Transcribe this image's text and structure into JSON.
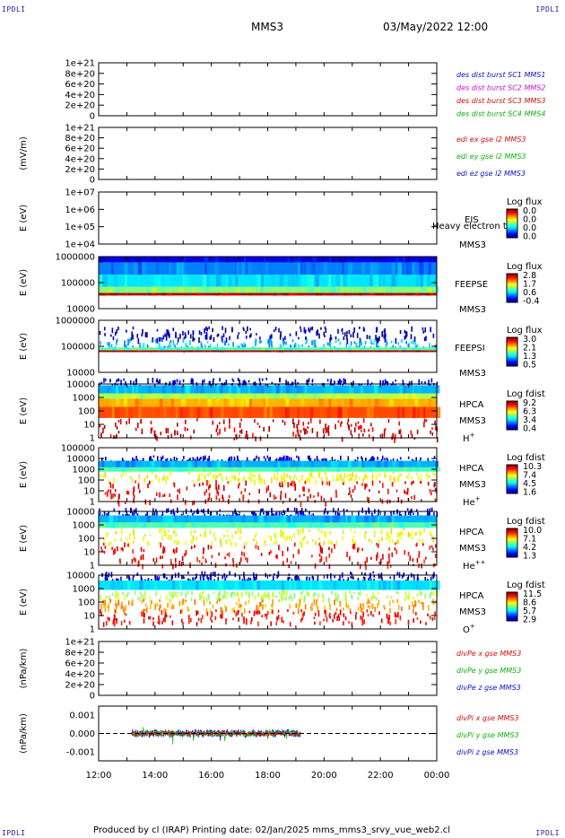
{
  "header": {
    "corner_label": "IPDLI",
    "spacecraft": "MMS3",
    "date_time": "03/May/2022 12:00"
  },
  "footer": {
    "text": "Produced by cl (IRAP)   Printing date: 02/Jan/2025   mms_mms3_srvy_vue_web2.cl"
  },
  "time_axis": {
    "ticks": [
      "12:00",
      "14:00",
      "16:00",
      "18:00",
      "20:00",
      "22:00",
      "00:00"
    ]
  },
  "chart_data": [
    {
      "id": "des-dist",
      "type": "line",
      "ylabel": "",
      "ylim": [
        0,
        1e+21
      ],
      "yticks": [
        "1e+21",
        "8e+20",
        "6e+20",
        "4e+20",
        "2e+20",
        "0"
      ],
      "zero_line": "dashed",
      "legend": [
        {
          "text": "des dist burst SC1 MMS1",
          "color": "#1010c8"
        },
        {
          "text": "des dist burst SC2 MMS2",
          "color": "#d010d0"
        },
        {
          "text": "des dist burst SC3 MMS3",
          "color": "#d01010"
        },
        {
          "text": "des dist burst SC4 MMS4",
          "color": "#10b010"
        }
      ],
      "series": []
    },
    {
      "id": "edi-e",
      "type": "line",
      "ylabel": "(mV/m)",
      "ylim": [
        0,
        1e+21
      ],
      "yticks": [
        "1e+21",
        "8e+20",
        "6e+20",
        "4e+20",
        "2e+20",
        "0"
      ],
      "zero_line": "dashed",
      "legend": [
        {
          "text": "edi ex gse l2 MMS3",
          "color": "#d01010"
        },
        {
          "text": "edi ey gse l2 MMS3",
          "color": "#10b010"
        },
        {
          "text": "edi ez gse l2 MMS3",
          "color": "#1010c8"
        }
      ],
      "series": []
    },
    {
      "id": "eis",
      "type": "heatmap",
      "ylabel": "E (eV)",
      "scale": "log",
      "yticks": [
        "1e+07",
        "1e+06",
        "1e+05",
        "1e+04"
      ],
      "instrument": [
        "EIS",
        "Heavy electron to",
        "MMS3"
      ],
      "colorbar_title": "Log flux",
      "colorbar_ticks": [
        "0.0",
        "0.0",
        "0.0",
        "0.0"
      ],
      "bands": []
    },
    {
      "id": "feepse",
      "type": "heatmap",
      "ylabel": "E (eV)",
      "scale": "log",
      "yticks": [
        "1000000",
        "100000",
        "10000"
      ],
      "instrument": [
        "FEEPSE",
        "MMS3"
      ],
      "colorbar_title": "Log flux",
      "colorbar_ticks": [
        "2.8",
        "1.7",
        "0.6",
        "-0.4"
      ],
      "data_range": {
        "start": "12:00",
        "end": "00:00"
      },
      "bands": [
        {
          "e_range": [
            600000,
            1000000
          ],
          "level": 0.1
        },
        {
          "e_range": [
            200000,
            600000
          ],
          "level": 0.25
        },
        {
          "e_range": [
            70000,
            200000
          ],
          "level": 0.35
        },
        {
          "e_range": [
            40000,
            70000
          ],
          "level": 0.5
        },
        {
          "e_range": [
            32000,
            40000
          ],
          "level": 0.95
        }
      ]
    },
    {
      "id": "feepsi",
      "type": "heatmap",
      "ylabel": "E (eV)",
      "scale": "log",
      "yticks": [
        "1000000",
        "100000",
        "10000"
      ],
      "instrument": [
        "FEEPSI",
        "MMS3"
      ],
      "colorbar_title": "Log flux",
      "colorbar_ticks": [
        "3.0",
        "2.1",
        "1.3",
        "0.5"
      ],
      "data_range": {
        "start": "12:00",
        "end": "00:00"
      },
      "bands": [
        {
          "e_range": [
            200000,
            600000
          ],
          "level": 0.05,
          "sparse": true
        },
        {
          "e_range": [
            90000,
            200000
          ],
          "level": 0.3,
          "sparse": true
        },
        {
          "e_range": [
            70000,
            90000
          ],
          "level": 0.45
        },
        {
          "e_range": [
            60000,
            70000
          ],
          "level": 0.95
        }
      ]
    },
    {
      "id": "hpca-h",
      "type": "heatmap",
      "ylabel": "E (eV)",
      "scale": "log",
      "yticks": [
        "10000",
        "1000",
        "100",
        "10",
        "1"
      ],
      "instrument": [
        "HPCA",
        "MMS3",
        "H",
        "+"
      ],
      "colorbar_title": "Log fdist",
      "colorbar_ticks": [
        "9.2",
        "6.3",
        "3.4",
        "0.4"
      ],
      "data_range": {
        "start": "12:00",
        "end": "00:00"
      },
      "bands": [
        {
          "e_range": [
            8000,
            30000
          ],
          "level": 0.08,
          "sparse": true
        },
        {
          "e_range": [
            2000,
            8000
          ],
          "level": 0.3
        },
        {
          "e_range": [
            800,
            2000
          ],
          "level": 0.55
        },
        {
          "e_range": [
            200,
            800
          ],
          "level": 0.7
        },
        {
          "e_range": [
            30,
            200
          ],
          "level": 0.8
        },
        {
          "e_range": [
            1,
            30
          ],
          "level": 0.92,
          "sparse": true
        }
      ]
    },
    {
      "id": "hpca-he",
      "type": "heatmap",
      "ylabel": "E (eV)",
      "scale": "log",
      "yticks": [
        "100000",
        "10000",
        "1000",
        "100",
        "10",
        "1"
      ],
      "instrument": [
        "HPCA",
        "MMS3",
        "He",
        "+"
      ],
      "colorbar_title": "Log fdist",
      "colorbar_ticks": [
        "10.3",
        "7.4",
        "4.5",
        "1.6"
      ],
      "data_range": {
        "start": "12:00",
        "end": "00:00"
      },
      "bands": [
        {
          "e_range": [
            6000,
            20000
          ],
          "level": 0.08,
          "sparse": true
        },
        {
          "e_range": [
            1500,
            6000
          ],
          "level": 0.3
        },
        {
          "e_range": [
            600,
            1500
          ],
          "level": 0.45
        },
        {
          "e_range": [
            100,
            600
          ],
          "level": 0.62,
          "sparse": true
        },
        {
          "e_range": [
            1,
            100
          ],
          "level": 0.9,
          "sparse": true
        }
      ]
    },
    {
      "id": "hpca-hepp",
      "type": "heatmap",
      "ylabel": "E (eV)",
      "scale": "log",
      "yticks": [
        "10000",
        "1000",
        "100",
        "10",
        "1"
      ],
      "instrument": [
        "HPCA",
        "MMS3",
        "He",
        "++"
      ],
      "colorbar_title": "Log fdist",
      "colorbar_ticks": [
        "10.0",
        "7.1",
        "4.2",
        "1.3"
      ],
      "data_range": {
        "start": "12:00",
        "end": "00:00"
      },
      "bands": [
        {
          "e_range": [
            5000,
            20000
          ],
          "level": 0.08,
          "sparse": true
        },
        {
          "e_range": [
            1500,
            5000
          ],
          "level": 0.3
        },
        {
          "e_range": [
            600,
            1500
          ],
          "level": 0.45
        },
        {
          "e_range": [
            50,
            600
          ],
          "level": 0.62,
          "sparse": true
        },
        {
          "e_range": [
            1,
            50
          ],
          "level": 0.88,
          "sparse": true
        }
      ]
    },
    {
      "id": "hpca-o",
      "type": "heatmap",
      "ylabel": "E (eV)",
      "scale": "log",
      "yticks": [
        "10000",
        "1000",
        "100",
        "10",
        "1"
      ],
      "instrument": [
        "HPCA",
        "MMS3",
        "O",
        "+"
      ],
      "colorbar_title": "Log fdist",
      "colorbar_ticks": [
        "11.5",
        "8.6",
        "5.7",
        "2.9"
      ],
      "data_range": {
        "start": "12:00",
        "end": "00:00"
      },
      "bands": [
        {
          "e_range": [
            4000,
            20000
          ],
          "level": 0.08,
          "sparse": true
        },
        {
          "e_range": [
            800,
            4000
          ],
          "level": 0.35
        },
        {
          "e_range": [
            200,
            800
          ],
          "level": 0.55,
          "sparse": true
        },
        {
          "e_range": [
            30,
            200
          ],
          "level": 0.72,
          "sparse": true
        },
        {
          "e_range": [
            3,
            30
          ],
          "level": 0.88,
          "sparse": true
        }
      ]
    },
    {
      "id": "divpe",
      "type": "line",
      "ylabel": "(nPa/km)",
      "ylim": [
        0,
        1e+21
      ],
      "yticks": [
        "1e+21",
        "8e+20",
        "6e+20",
        "4e+20",
        "2e+20",
        "0"
      ],
      "zero_line": "dashed",
      "legend": [
        {
          "text": "divPe x gse MMS3",
          "color": "#d01010"
        },
        {
          "text": "divPe y gse MMS3",
          "color": "#10b010"
        },
        {
          "text": "divPe z gse MMS3",
          "color": "#1010c8"
        }
      ],
      "series": []
    },
    {
      "id": "divpi",
      "type": "line",
      "ylabel": "(nPa/km)",
      "ylim": [
        -0.0015,
        0.0015
      ],
      "yticks": [
        "0.001",
        "0.000",
        "-0.001"
      ],
      "zero_line": "dashed",
      "legend": [
        {
          "text": "divPi x gse MMS3",
          "color": "#d01010"
        },
        {
          "text": "divPi y gse MMS3",
          "color": "#10b010"
        },
        {
          "text": "divPi z gse MMS3",
          "color": "#1010c8"
        }
      ],
      "data_range": {
        "start": "13:10",
        "end": "19:10"
      },
      "series": [
        {
          "color": "#1010c8",
          "amp": 0.00022
        },
        {
          "color": "#10b010",
          "amp": 0.00018
        },
        {
          "color": "#d01010",
          "amp": 0.00012
        }
      ]
    }
  ]
}
